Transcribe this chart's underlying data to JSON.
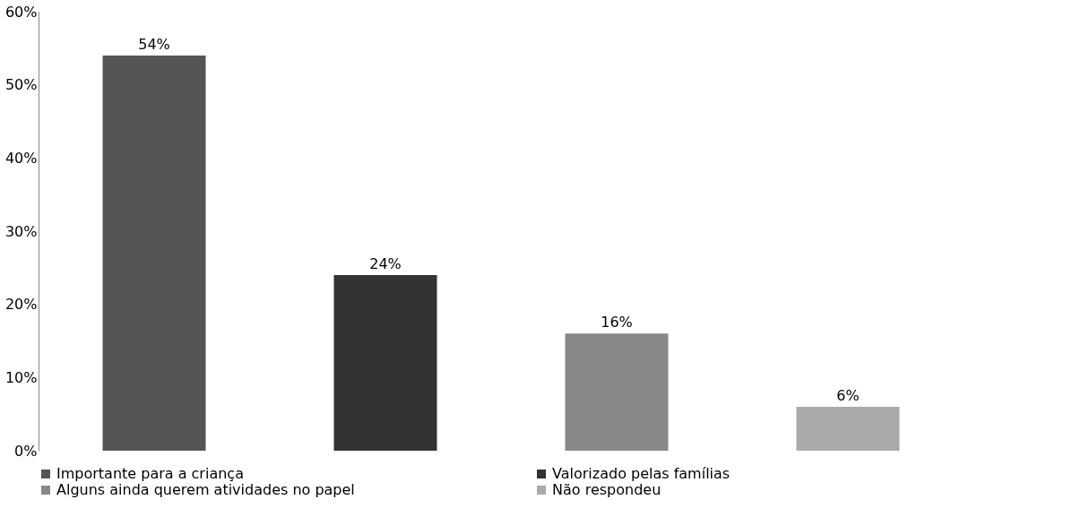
{
  "chart_data": {
    "type": "bar",
    "categories": [
      null,
      null,
      null,
      null
    ],
    "series": [
      {
        "name": "Importante para a criança",
        "color": "#555555",
        "values": [
          54,
          null,
          null,
          null
        ],
        "value_labels": [
          "54%",
          null,
          null,
          null
        ]
      },
      {
        "name": "Valorizado pelas famílias",
        "color": "#333333",
        "values": [
          null,
          24,
          null,
          null
        ],
        "value_labels": [
          null,
          "24%",
          null,
          null
        ]
      },
      {
        "name": "Alguns ainda querem atividades no papel",
        "color": "#888888",
        "values": [
          null,
          null,
          16,
          null
        ],
        "value_labels": [
          null,
          null,
          "16%",
          null
        ]
      },
      {
        "name": "Não respondeu",
        "color": "#aaaaaa",
        "values": [
          null,
          null,
          null,
          6
        ],
        "value_labels": [
          null,
          null,
          null,
          "6%"
        ]
      }
    ],
    "ylim": [
      0,
      60
    ],
    "yticks": [
      {
        "value": 0,
        "label": "0%"
      },
      {
        "value": 10,
        "label": "10%"
      },
      {
        "value": 20,
        "label": "20%"
      },
      {
        "value": 30,
        "label": "30%"
      },
      {
        "value": 40,
        "label": "40%"
      },
      {
        "value": 50,
        "label": "50%"
      },
      {
        "value": 60,
        "label": "60%"
      }
    ],
    "legend": "bottom",
    "stacked": true
  }
}
